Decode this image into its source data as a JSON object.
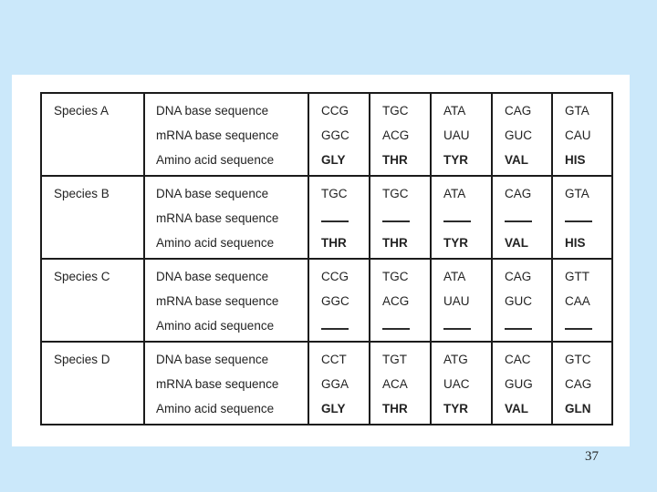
{
  "page": {
    "number": "37"
  },
  "colors": {
    "background": "#cbe8fa",
    "panel": "#ffffff",
    "table_border": "#1b1b1b",
    "text": "#232323"
  },
  "table": {
    "row_labels": [
      "DNA base sequence",
      "mRNA base sequence",
      "Amino acid sequence"
    ],
    "species": [
      {
        "name": "Species A",
        "dna": [
          "CCG",
          "TGC",
          "ATA",
          "CAG",
          "GTA"
        ],
        "mrna": [
          "GGC",
          "ACG",
          "UAU",
          "GUC",
          "CAU"
        ],
        "amino": [
          "GLY",
          "THR",
          "TYR",
          "VAL",
          "HIS"
        ]
      },
      {
        "name": "Species B",
        "dna": [
          "TGC",
          "TGC",
          "ATA",
          "CAG",
          "GTA"
        ],
        "mrna": [
          "",
          "",
          "",
          "",
          ""
        ],
        "amino": [
          "THR",
          "THR",
          "TYR",
          "VAL",
          "HIS"
        ]
      },
      {
        "name": "Species C",
        "dna": [
          "CCG",
          "TGC",
          "ATA",
          "CAG",
          "GTT"
        ],
        "mrna": [
          "GGC",
          "ACG",
          "UAU",
          "GUC",
          "CAA"
        ],
        "amino": [
          "",
          "",
          "",
          "",
          ""
        ]
      },
      {
        "name": "Species D",
        "dna": [
          "CCT",
          "TGT",
          "ATG",
          "CAC",
          "GTC"
        ],
        "mrna": [
          "GGA",
          "ACA",
          "UAC",
          "GUG",
          "CAG"
        ],
        "amino": [
          "GLY",
          "THR",
          "TYR",
          "VAL",
          "GLN"
        ]
      }
    ]
  }
}
